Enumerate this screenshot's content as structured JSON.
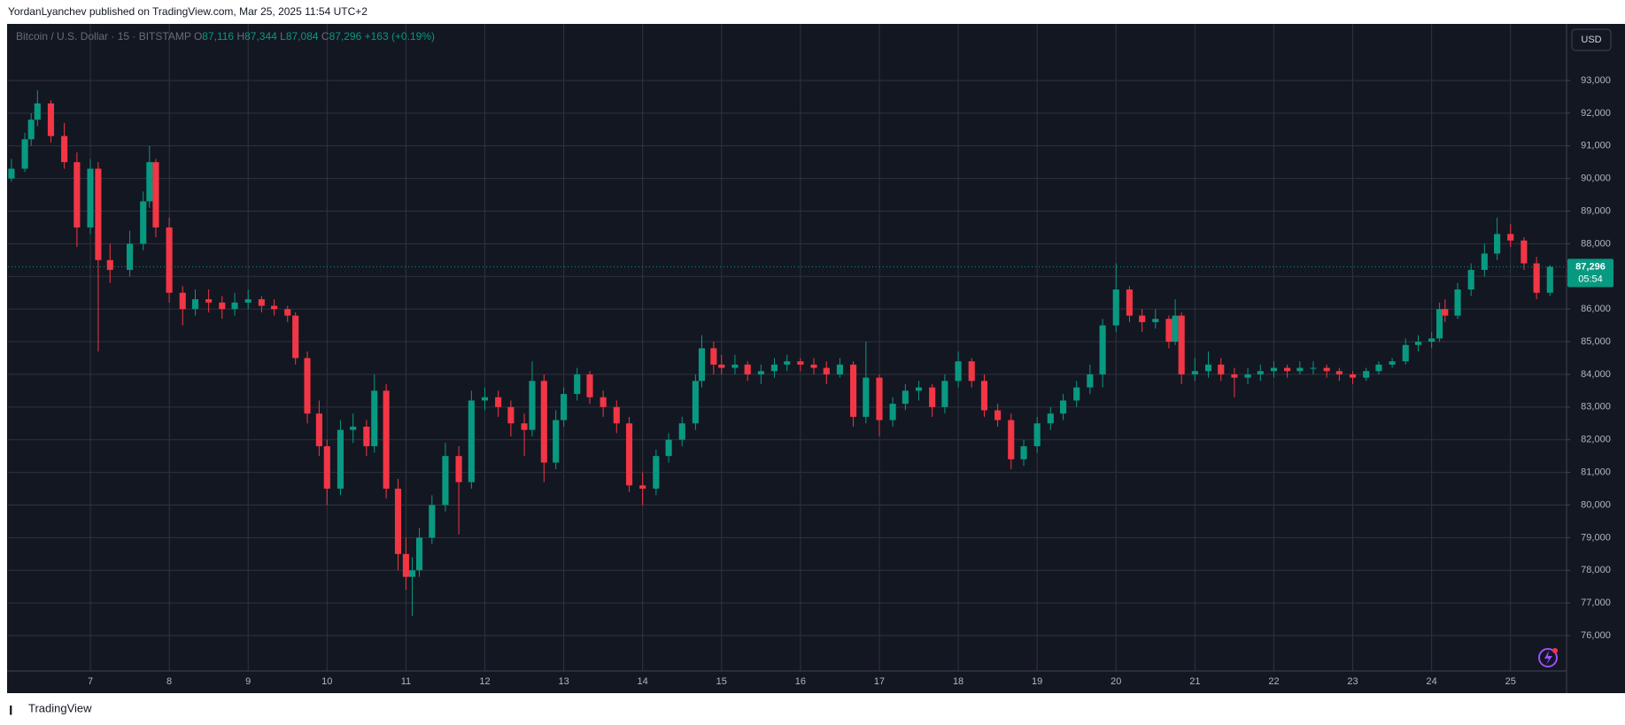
{
  "header": {
    "publisher": "YordanLyanchev published on TradingView.com, Mar 25, 2025 11:54 UTC+2"
  },
  "footer": {
    "brand": "TradingView"
  },
  "chart_data": {
    "type": "candlestick",
    "symbol": "Bitcoin / U.S. Dollar · 15 · BITSTAMP",
    "ohlc_legend": {
      "o_label": "O",
      "open": "87,116",
      "h_label": "H",
      "high": "87,344",
      "l_label": "L",
      "low": "87,084",
      "c_label": "C",
      "close": "87,296",
      "change": "+163 (+0.19%)"
    },
    "currency": "USD",
    "last_price": {
      "value": 87296,
      "label": "87,296"
    },
    "countdown": "05:54",
    "up_color": "#089981",
    "down_color": "#f23645",
    "grid": true,
    "xlim": [
      5.956,
      25.71
    ],
    "xticks": [
      7,
      8,
      9,
      10,
      11,
      12,
      13,
      14,
      15,
      16,
      17,
      18,
      19,
      20,
      21,
      22,
      23,
      24,
      25
    ],
    "ylim": [
      74916,
      94734
    ],
    "yticks": [
      {
        "value": 76000,
        "label": "76,000"
      },
      {
        "value": 77000,
        "label": "77,000"
      },
      {
        "value": 78000,
        "label": "78,000"
      },
      {
        "value": 79000,
        "label": "79,000"
      },
      {
        "value": 80000,
        "label": "80,000"
      },
      {
        "value": 81000,
        "label": "81,000"
      },
      {
        "value": 82000,
        "label": "82,000"
      },
      {
        "value": 83000,
        "label": "83,000"
      },
      {
        "value": 84000,
        "label": "84,000"
      },
      {
        "value": 85000,
        "label": "85,000"
      },
      {
        "value": 86000,
        "label": "86,000"
      },
      {
        "value": 87000,
        "label": "87,000"
      },
      {
        "value": 88000,
        "label": "88,000"
      },
      {
        "value": 89000,
        "label": "89,000"
      },
      {
        "value": 90000,
        "label": "90,000"
      },
      {
        "value": 91000,
        "label": "91,000"
      },
      {
        "value": 92000,
        "label": "92,000"
      },
      {
        "value": 93000,
        "label": "93,000"
      }
    ],
    "x": [
      6.0,
      6.17,
      6.25,
      6.33,
      6.5,
      6.67,
      6.83,
      7.0,
      7.1,
      7.25,
      7.5,
      7.67,
      7.75,
      7.83,
      8.0,
      8.17,
      8.33,
      8.5,
      8.67,
      8.83,
      9.0,
      9.17,
      9.33,
      9.5,
      9.6,
      9.75,
      9.9,
      10.0,
      10.17,
      10.33,
      10.5,
      10.6,
      10.75,
      10.9,
      11.0,
      11.08,
      11.17,
      11.33,
      11.5,
      11.67,
      11.83,
      12.0,
      12.17,
      12.33,
      12.5,
      12.6,
      12.75,
      12.9,
      13.0,
      13.17,
      13.33,
      13.5,
      13.67,
      13.83,
      14.0,
      14.17,
      14.33,
      14.5,
      14.67,
      14.75,
      14.9,
      15.0,
      15.17,
      15.33,
      15.5,
      15.67,
      15.83,
      16.0,
      16.17,
      16.33,
      16.5,
      16.67,
      16.83,
      17.0,
      17.17,
      17.33,
      17.5,
      17.67,
      17.83,
      18.0,
      18.17,
      18.33,
      18.5,
      18.67,
      18.83,
      19.0,
      19.17,
      19.33,
      19.5,
      19.67,
      19.83,
      20.0,
      20.17,
      20.33,
      20.5,
      20.67,
      20.75,
      20.83,
      21.0,
      21.17,
      21.33,
      21.5,
      21.67,
      21.83,
      22.0,
      22.17,
      22.33,
      22.5,
      22.67,
      22.83,
      23.0,
      23.17,
      23.33,
      23.5,
      23.67,
      23.83,
      24.0,
      24.1,
      24.17,
      24.33,
      24.5,
      24.67,
      24.83,
      25.0,
      25.17,
      25.33,
      25.5
    ],
    "open": [
      90000,
      90300,
      91200,
      91800,
      92300,
      91300,
      90500,
      88500,
      90300,
      87500,
      87200,
      88000,
      89300,
      90500,
      88500,
      86500,
      86000,
      86300,
      86200,
      86000,
      86200,
      86300,
      86100,
      86000,
      85800,
      84500,
      82800,
      81800,
      80500,
      82300,
      82400,
      81800,
      83500,
      80500,
      78500,
      77800,
      78000,
      79000,
      80000,
      81500,
      80700,
      83200,
      83300,
      83000,
      82500,
      82300,
      83800,
      81300,
      82600,
      83400,
      84000,
      83300,
      83000,
      82500,
      80600,
      80500,
      81500,
      82000,
      82500,
      83800,
      84800,
      84300,
      84200,
      84300,
      84000,
      84100,
      84300,
      84400,
      84300,
      84200,
      84000,
      84300,
      82700,
      83900,
      82600,
      83100,
      83500,
      83600,
      83000,
      83800,
      84400,
      83800,
      82900,
      82600,
      81400,
      81800,
      82500,
      82800,
      83200,
      83600,
      84000,
      85500,
      86600,
      85800,
      85600,
      85700,
      85000,
      85800,
      84000,
      84100,
      84300,
      84000,
      83900,
      84000,
      84100,
      84200,
      84100,
      84200,
      84200,
      84100,
      84000,
      83900,
      84100,
      84300,
      84400,
      84900,
      85000,
      85100,
      86000,
      85800,
      86600,
      87200,
      87700,
      88300,
      88100,
      87400,
      86500
    ],
    "high": [
      90600,
      91400,
      92000,
      92700,
      92400,
      91700,
      90800,
      90600,
      90500,
      88000,
      88400,
      89600,
      91000,
      90600,
      88800,
      86700,
      86600,
      86600,
      86400,
      86500,
      86600,
      86400,
      86300,
      86100,
      85900,
      84700,
      83200,
      82000,
      82600,
      82800,
      82600,
      84000,
      83700,
      80800,
      79000,
      78400,
      79300,
      80300,
      81900,
      81800,
      83500,
      83600,
      83500,
      83200,
      82800,
      84400,
      84000,
      82900,
      83600,
      84200,
      84100,
      83500,
      83200,
      82700,
      81000,
      81700,
      82200,
      82700,
      84000,
      85200,
      85000,
      84600,
      84600,
      84400,
      84300,
      84500,
      84600,
      84500,
      84500,
      84400,
      84500,
      84400,
      85000,
      84000,
      83300,
      83700,
      83800,
      83700,
      84000,
      84700,
      84500,
      84000,
      83100,
      82800,
      82000,
      82700,
      83000,
      83400,
      83800,
      84300,
      85700,
      87400,
      86700,
      86000,
      86000,
      85800,
      86300,
      85900,
      84500,
      84700,
      84500,
      84200,
      84200,
      84300,
      84400,
      84300,
      84400,
      84400,
      84300,
      84200,
      84100,
      84200,
      84400,
      84500,
      85100,
      85200,
      85300,
      86200,
      86300,
      86800,
      87400,
      88000,
      88800,
      88600,
      88200,
      87600,
      87344
    ],
    "low": [
      89900,
      90200,
      91000,
      91600,
      91100,
      90300,
      87900,
      88300,
      84700,
      86800,
      87000,
      87800,
      89100,
      88200,
      86200,
      85500,
      85800,
      85900,
      85700,
      85800,
      86000,
      85900,
      85800,
      85600,
      84300,
      82500,
      81500,
      80000,
      80300,
      81900,
      81500,
      81600,
      80200,
      78000,
      77400,
      76600,
      77800,
      78800,
      79800,
      79100,
      80500,
      82900,
      82700,
      82100,
      81500,
      82100,
      80700,
      81100,
      82400,
      83200,
      83100,
      82700,
      82200,
      80400,
      80000,
      80300,
      81300,
      81800,
      82300,
      83600,
      84000,
      84000,
      84000,
      83800,
      83700,
      83900,
      84100,
      84100,
      84000,
      83700,
      83900,
      82400,
      82500,
      82100,
      82400,
      82900,
      83200,
      82700,
      82800,
      83600,
      83600,
      82700,
      82400,
      81100,
      81200,
      81600,
      82300,
      82600,
      83000,
      83400,
      83600,
      85300,
      85600,
      85300,
      85400,
      84800,
      84900,
      83700,
      83800,
      83900,
      83800,
      83300,
      83700,
      83800,
      83900,
      83900,
      84000,
      84000,
      83900,
      83800,
      83700,
      83800,
      84000,
      84200,
      84300,
      84700,
      84800,
      85000,
      85600,
      85700,
      86400,
      87000,
      87500,
      87900,
      87200,
      86300,
      86400
    ],
    "close": [
      90300,
      91200,
      91800,
      92300,
      91300,
      90500,
      88500,
      90300,
      87500,
      87200,
      88000,
      89300,
      90500,
      88500,
      86500,
      86000,
      86300,
      86200,
      86000,
      86200,
      86300,
      86100,
      86000,
      85800,
      84500,
      82800,
      81800,
      80500,
      82300,
      82400,
      81800,
      83500,
      80500,
      78500,
      77800,
      78000,
      79000,
      80000,
      81500,
      80700,
      83200,
      83300,
      83000,
      82500,
      82300,
      83800,
      81300,
      82600,
      83400,
      84000,
      83300,
      83000,
      82500,
      80600,
      80500,
      81500,
      82000,
      82500,
      83800,
      84800,
      84300,
      84200,
      84300,
      84000,
      84100,
      84300,
      84400,
      84300,
      84200,
      84000,
      84300,
      82700,
      83900,
      82600,
      83100,
      83500,
      83600,
      83000,
      83800,
      84400,
      83800,
      82900,
      82600,
      81400,
      81800,
      82500,
      82800,
      83200,
      83600,
      84000,
      85500,
      86600,
      85800,
      85600,
      85700,
      85000,
      85800,
      84000,
      84100,
      84300,
      84000,
      83900,
      84000,
      84100,
      84200,
      84100,
      84200,
      84200,
      84100,
      84000,
      83900,
      84100,
      84300,
      84400,
      84900,
      85000,
      85100,
      86000,
      85800,
      86600,
      87200,
      87700,
      88300,
      88100,
      87400,
      86500,
      87296
    ]
  }
}
